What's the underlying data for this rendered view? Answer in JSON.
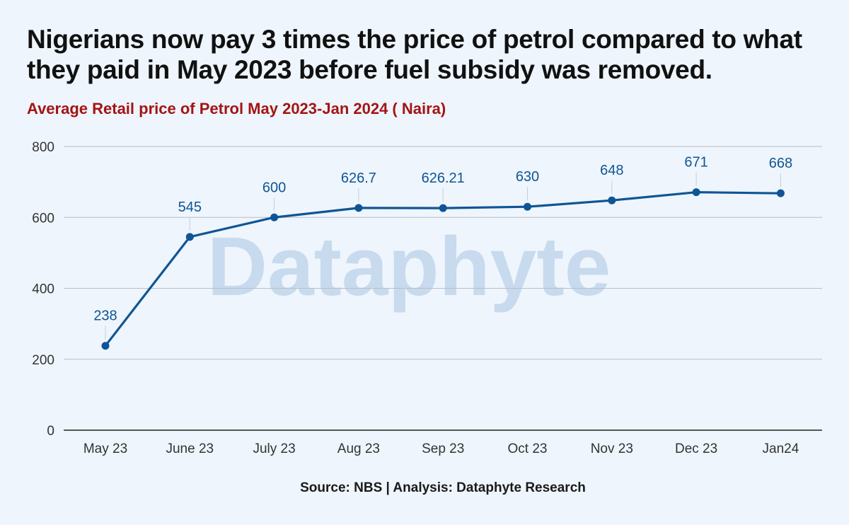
{
  "title": "Nigerians now pay 3 times the price of petrol compared to what they paid in May 2023 before fuel subsidy was removed.",
  "subtitle": "Average Retail price of Petrol May 2023-Jan 2024 ( Naira)",
  "source": "Source: NBS | Analysis: Dataphyte Research",
  "watermark": "Dataphyte",
  "colors": {
    "background": "#eef5fc",
    "line": "#0f5595",
    "title": "#111111",
    "subtitle": "#a31414",
    "grid": "#b9bfc6"
  },
  "chart_data": {
    "type": "line",
    "categories": [
      "May 23",
      "June 23",
      "July 23",
      "Aug 23",
      "Sep 23",
      "Oct 23",
      "Nov 23",
      "Dec 23",
      "Jan24"
    ],
    "values": [
      238,
      545,
      600,
      626.7,
      626.21,
      630,
      648,
      671,
      668
    ],
    "data_labels": [
      "238",
      "545",
      "600",
      "626.7",
      "626.21",
      "630",
      "648",
      "671",
      "668"
    ],
    "y_ticks": [
      0,
      200,
      400,
      600,
      800
    ],
    "ylim": [
      0,
      800
    ],
    "grid": "horizontal",
    "legend": "none"
  }
}
